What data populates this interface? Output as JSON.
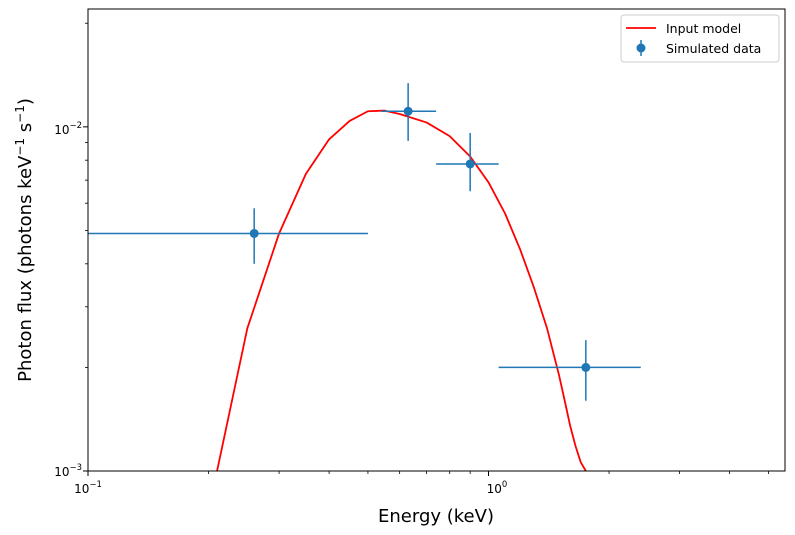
{
  "chart_data": {
    "type": "scatter",
    "title": "",
    "xlabel": "Energy (keV)",
    "ylabel": {
      "prefix": "Photon flux (photons keV",
      "exp1": "−1",
      "middle": " s",
      "exp2": "−1",
      "suffix": ")"
    },
    "xscale": "log",
    "yscale": "log",
    "xlim": [
      0.1,
      5.5
    ],
    "ylim": [
      0.001,
      0.022
    ],
    "x_ticks": [
      {
        "value": 0.1,
        "base": "10",
        "exp": "−1"
      },
      {
        "value": 1.0,
        "base": "10",
        "exp": "0"
      }
    ],
    "y_ticks": [
      {
        "value": 0.001,
        "base": "10",
        "exp": "−3"
      },
      {
        "value": 0.01,
        "base": "10",
        "exp": "−2"
      }
    ],
    "grid": false,
    "legend_position": "top-right",
    "series": [
      {
        "name": "Input model",
        "kind": "line",
        "color": "#ff0000",
        "x": [
          0.21,
          0.25,
          0.3,
          0.35,
          0.4,
          0.45,
          0.5,
          0.55,
          0.6,
          0.7,
          0.8,
          0.9,
          1.0,
          1.1,
          1.2,
          1.3,
          1.4,
          1.5,
          1.55,
          1.6,
          1.65,
          1.7,
          1.75
        ],
        "y": [
          0.001,
          0.0026,
          0.0049,
          0.0073,
          0.0092,
          0.0104,
          0.0111,
          0.01115,
          0.0109,
          0.0103,
          0.0094,
          0.0082,
          0.0069,
          0.0056,
          0.0044,
          0.0034,
          0.0026,
          0.0019,
          0.0016,
          0.00135,
          0.00118,
          0.00106,
          0.001
        ]
      },
      {
        "name": "Simulated data",
        "kind": "errorbar",
        "color": "#1f77b4",
        "points": [
          {
            "x": 0.26,
            "y": 0.0049,
            "xlo": 0.1,
            "xhi": 0.5,
            "ylo": 0.004,
            "yhi": 0.0058
          },
          {
            "x": 0.63,
            "y": 0.0111,
            "xlo": 0.54,
            "xhi": 0.74,
            "ylo": 0.0091,
            "yhi": 0.0134
          },
          {
            "x": 0.9,
            "y": 0.0078,
            "xlo": 0.74,
            "xhi": 1.06,
            "ylo": 0.0065,
            "yhi": 0.0096
          },
          {
            "x": 1.75,
            "y": 0.002,
            "xlo": 1.06,
            "xhi": 2.4,
            "ylo": 0.0016,
            "yhi": 0.0024
          }
        ]
      }
    ]
  }
}
